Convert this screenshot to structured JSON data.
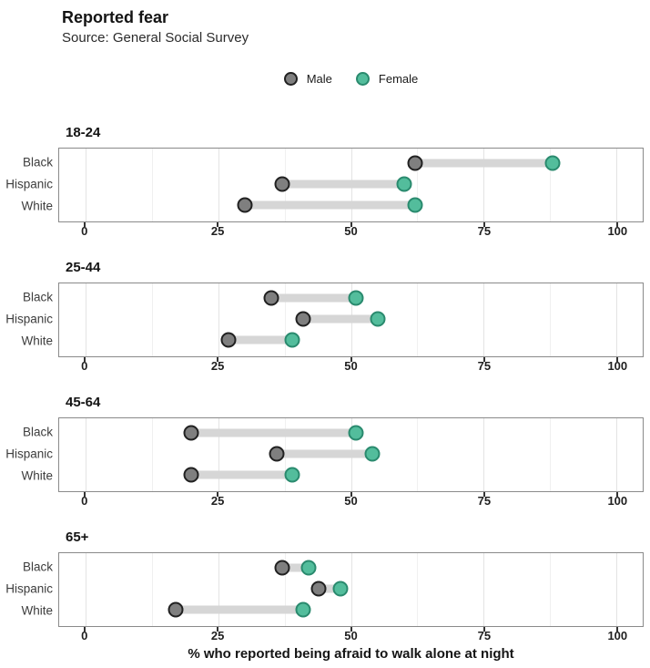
{
  "header": {
    "title": "Reported fear",
    "subtitle": "Source: General Social Survey"
  },
  "legend": {
    "items": [
      {
        "label": "Male",
        "fill": "#7f7f7f",
        "stroke": "#212121"
      },
      {
        "label": "Female",
        "fill": "#53bd9c",
        "stroke": "#2a8a6e"
      }
    ]
  },
  "chart_data": {
    "type": "dumbbell",
    "title": "Reported fear",
    "subtitle": "Source: General Social Survey",
    "xlabel": "% who reported being afraid to walk alone at night",
    "xlim": [
      0,
      100
    ],
    "x_ticks": [
      0,
      25,
      50,
      75,
      100
    ],
    "x_minor_ticks": [
      12.5,
      37.5,
      62.5,
      87.5
    ],
    "grid": "vertical-only",
    "legend_position": "top-center",
    "series_names": [
      "Male",
      "Female"
    ],
    "colors": {
      "male_fill": "#7f7f7f",
      "male_stroke": "#212121",
      "female_fill": "#53bd9c",
      "female_stroke": "#2a8a6e",
      "connector": "#d6d6d6",
      "major_grid": "#e3e3e3",
      "minor_grid": "#f0f0f0",
      "panel_border": "#8a8a8a"
    },
    "panels": [
      {
        "age_group": "18-24",
        "rows": [
          {
            "category": "Black",
            "male": 62,
            "female": 88
          },
          {
            "category": "Hispanic",
            "male": 37,
            "female": 60
          },
          {
            "category": "White",
            "male": 30,
            "female": 62
          }
        ]
      },
      {
        "age_group": "25-44",
        "rows": [
          {
            "category": "Black",
            "male": 35,
            "female": 51
          },
          {
            "category": "Hispanic",
            "male": 41,
            "female": 55
          },
          {
            "category": "White",
            "male": 27,
            "female": 39
          }
        ]
      },
      {
        "age_group": "45-64",
        "rows": [
          {
            "category": "Black",
            "male": 20,
            "female": 51
          },
          {
            "category": "Hispanic",
            "male": 36,
            "female": 54
          },
          {
            "category": "White",
            "male": 20,
            "female": 39
          }
        ]
      },
      {
        "age_group": "65+",
        "rows": [
          {
            "category": "Black",
            "male": 37,
            "female": 42
          },
          {
            "category": "Hispanic",
            "male": 44,
            "female": 48
          },
          {
            "category": "White",
            "male": 17,
            "female": 41
          }
        ]
      }
    ]
  }
}
